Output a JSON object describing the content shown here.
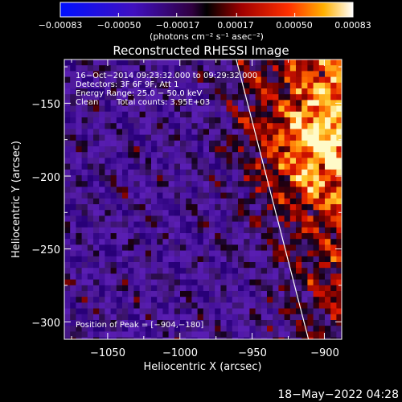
{
  "chart_data": {
    "type": "heatmap",
    "title": "Reconstructed RHESSI Image",
    "xlabel": "Heliocentric X (arcsec)",
    "ylabel": "Heliocentric Y (arcsec)",
    "xlim": [
      -1080,
      -888
    ],
    "ylim": [
      -312,
      -120
    ],
    "x_ticks": [
      -1050,
      -1000,
      -950,
      -900
    ],
    "x_tick_labels": [
      "−1050",
      "−1000",
      "−950",
      "−900"
    ],
    "y_ticks": [
      -150,
      -200,
      -250,
      -300
    ],
    "y_tick_labels": [
      "−150",
      "−200",
      "−250",
      "−300"
    ],
    "colorbar": {
      "range": [
        -0.00083,
        0.00083
      ],
      "ticks": [
        -0.00083,
        -0.0005,
        -0.00017,
        0.00017,
        0.0005,
        0.00083
      ],
      "tick_labels": [
        "−0.00083",
        "−0.00050",
        "−0.00017",
        "0.00017",
        "0.00050",
        "0.00083"
      ],
      "unit_label": "(photons cm⁻² s⁻¹ asec⁻²)"
    },
    "annotations": [
      "16−Oct−2014 09:23:32.000 to 09:29:32.000",
      "Detectors: 3F 6F 9F, Att 1",
      "Energy Range: 25.0 − 50.0 keV",
      "Clean",
      "Total counts: 3.95E+03"
    ],
    "peak_label": "Position of Peak = [−904,−180]",
    "peak_position": [
      -904,
      -180
    ],
    "limb_line": {
      "x_top": -961,
      "y_top": -120,
      "x_bottom": -911,
      "y_bottom": -312
    },
    "grid": false
  },
  "footer": {
    "date": "18−May−2022 04:28"
  }
}
